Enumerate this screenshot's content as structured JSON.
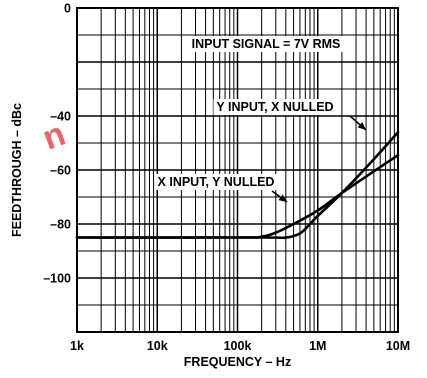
{
  "chart_data": {
    "type": "line",
    "title": "",
    "xlabel": "FREQUENCY – Hz",
    "ylabel": "FEEDTHROUGH – dBc",
    "x_scale": "log",
    "xlim": [
      1000,
      10000000
    ],
    "ylim": [
      -120,
      0
    ],
    "x_ticks": [
      {
        "value": 1000,
        "label": "1k"
      },
      {
        "value": 10000,
        "label": "10k"
      },
      {
        "value": 100000,
        "label": "100k"
      },
      {
        "value": 1000000,
        "label": "1M"
      },
      {
        "value": 10000000,
        "label": "10M"
      }
    ],
    "y_ticks": [
      {
        "value": 0,
        "label": "0"
      },
      {
        "value": -40,
        "label": "–40"
      },
      {
        "value": -60,
        "label": "–60"
      },
      {
        "value": -80,
        "label": "–80"
      },
      {
        "value": -100,
        "label": "–100"
      }
    ],
    "grid": true,
    "series": [
      {
        "name": "Y INPUT, X NULLED",
        "points": [
          {
            "x": 1000,
            "y": -85
          },
          {
            "x": 100000,
            "y": -85
          },
          {
            "x": 200000,
            "y": -84.7
          },
          {
            "x": 300000,
            "y": -83.2
          },
          {
            "x": 500000,
            "y": -80
          },
          {
            "x": 1000000,
            "y": -75
          },
          {
            "x": 2000000,
            "y": -68.5
          },
          {
            "x": 5000000,
            "y": -60.5
          },
          {
            "x": 10000000,
            "y": -54.5
          }
        ]
      },
      {
        "name": "X INPUT, Y NULLED",
        "points": [
          {
            "x": 1000,
            "y": -85
          },
          {
            "x": 200000,
            "y": -85
          },
          {
            "x": 400000,
            "y": -85
          },
          {
            "x": 600000,
            "y": -83.5
          },
          {
            "x": 800000,
            "y": -80
          },
          {
            "x": 1000000,
            "y": -77
          },
          {
            "x": 2000000,
            "y": -68.5
          },
          {
            "x": 5000000,
            "y": -56
          },
          {
            "x": 10000000,
            "y": -46
          }
        ]
      }
    ],
    "annotations": [
      {
        "text": "INPUT SIGNAL = 7V RMS"
      },
      {
        "text": "Y INPUT, X NULLED"
      },
      {
        "text": "X INPUT, Y NULLED"
      }
    ]
  },
  "watermark": {
    "text": "n",
    "color": "#e64b4b"
  }
}
